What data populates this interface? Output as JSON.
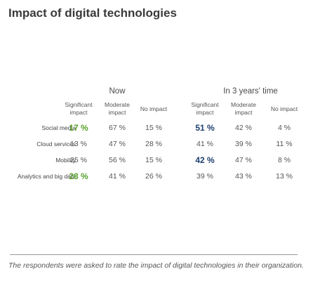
{
  "title": "Impact of digital technologies",
  "footnote": "The respondents were asked to rate the impact of digital technologies in their organization.",
  "colors": {
    "highlight_green": "#5aa02c",
    "highlight_blue": "#1f3f6e",
    "text": "#555555"
  },
  "chart_data": {
    "type": "table",
    "title": "Impact of digital technologies",
    "groups": [
      "Now",
      "In 3 years' time"
    ],
    "columns": [
      "Significant impact",
      "Moderate impact",
      "No impact"
    ],
    "column_lines": [
      [
        "Significant",
        "impact"
      ],
      [
        "Moderate",
        "impact"
      ],
      [
        "No impact"
      ]
    ],
    "rows": [
      {
        "label": "Social media",
        "now": [
          "17 %",
          "67 %",
          "15 %"
        ],
        "future": [
          "51 %",
          "42 %",
          "4 %"
        ]
      },
      {
        "label": "Cloud services",
        "now": [
          "13 %",
          "47 %",
          "28 %"
        ],
        "future": [
          "41 %",
          "39 %",
          "11 %"
        ]
      },
      {
        "label": "Mobility",
        "now": [
          "25 %",
          "56 %",
          "15 %"
        ],
        "future": [
          "42 %",
          "47 %",
          "8 %"
        ]
      },
      {
        "label": "Analytics and big data",
        "now": [
          "28 %",
          "41 %",
          "26 %"
        ],
        "future": [
          "39 %",
          "43 %",
          "13 %"
        ]
      }
    ],
    "highlighted_now_rows": [
      0,
      3
    ],
    "highlighted_future_rows": [
      0,
      2
    ]
  }
}
